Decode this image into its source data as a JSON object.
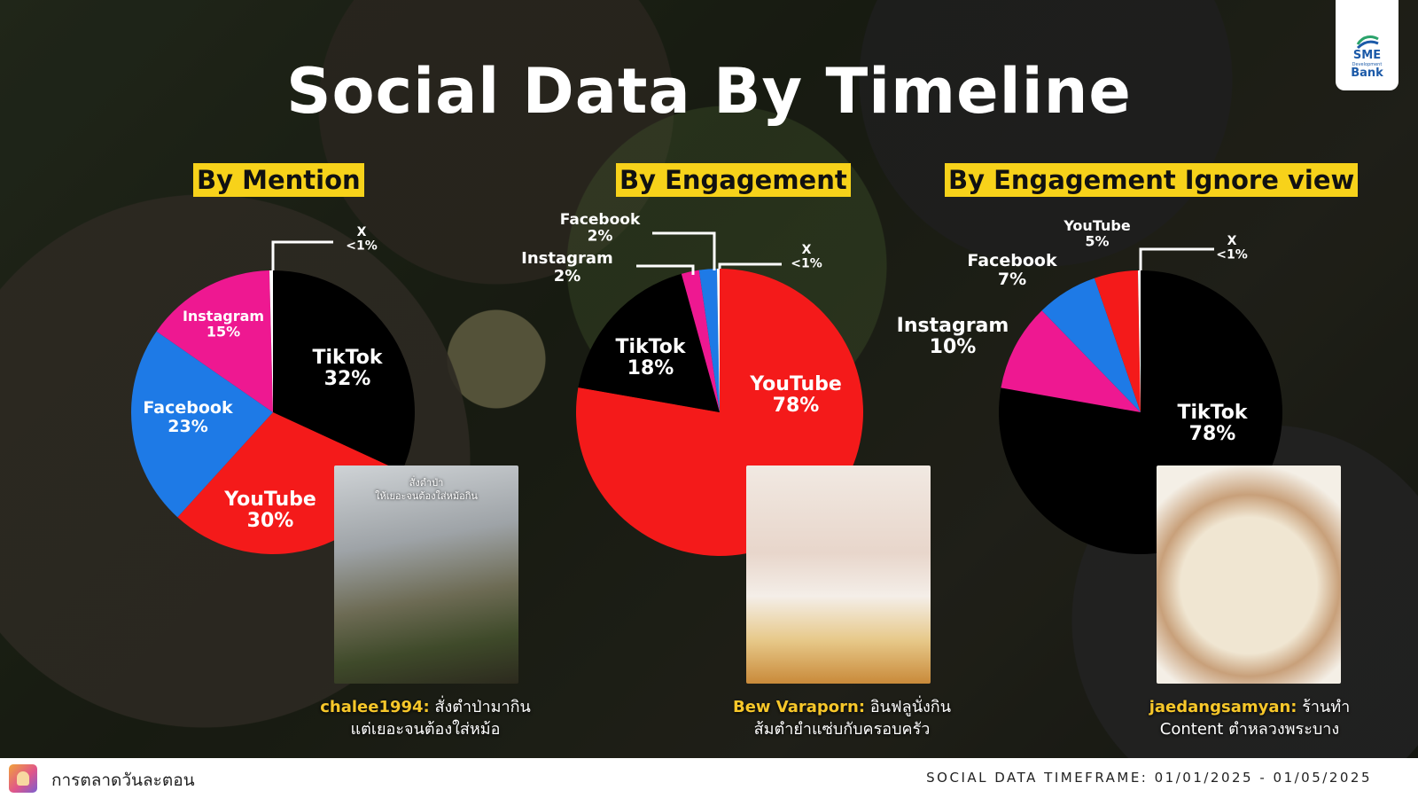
{
  "title": "Social Data By Timeline",
  "logo": {
    "line1": "SME",
    "line2": "Development",
    "line3": "Bank"
  },
  "sections": [
    {
      "title": "By Mention"
    },
    {
      "title": "By Engagement"
    },
    {
      "title": "By Engagement Ignore view"
    }
  ],
  "chart_data": [
    {
      "type": "pie",
      "title": "By Mention",
      "slices": [
        {
          "label": "TikTok",
          "value": 32,
          "display": "32%",
          "color": "#000000"
        },
        {
          "label": "YouTube",
          "value": 30,
          "display": "30%",
          "color": "#f41a1a"
        },
        {
          "label": "Facebook",
          "value": 23,
          "display": "23%",
          "color": "#1e7ae6"
        },
        {
          "label": "Instagram",
          "value": 15,
          "display": "15%",
          "color": "#ee1891"
        },
        {
          "label": "X",
          "value": 0.4,
          "display": "<1%",
          "color": "#ffffff"
        }
      ]
    },
    {
      "type": "pie",
      "title": "By Engagement",
      "slices": [
        {
          "label": "YouTube",
          "value": 78,
          "display": "78%",
          "color": "#f41a1a"
        },
        {
          "label": "TikTok",
          "value": 18,
          "display": "18%",
          "color": "#000000"
        },
        {
          "label": "Instagram",
          "value": 2,
          "display": "2%",
          "color": "#ee1891"
        },
        {
          "label": "Facebook",
          "value": 2,
          "display": "2%",
          "color": "#1e7ae6"
        },
        {
          "label": "X",
          "value": 0.3,
          "display": "<1%",
          "color": "#ffffff"
        }
      ]
    },
    {
      "type": "pie",
      "title": "By Engagement Ignore view",
      "slices": [
        {
          "label": "TikTok",
          "value": 78,
          "display": "78%",
          "color": "#000000"
        },
        {
          "label": "Instagram",
          "value": 10,
          "display": "10%",
          "color": "#ee1891"
        },
        {
          "label": "Facebook",
          "value": 7,
          "display": "7%",
          "color": "#1e7ae6"
        },
        {
          "label": "YouTube",
          "value": 5,
          "display": "5%",
          "color": "#f41a1a"
        },
        {
          "label": "X",
          "value": 0.3,
          "display": "<1%",
          "color": "#ffffff"
        }
      ]
    }
  ],
  "posts": [
    {
      "thumb_text_1": "สั่งตำป่า",
      "thumb_text_2": "ให้เยอะจนต้องใส่หม้อกิน",
      "handle": "chalee1994:",
      "text_1": "สั่งตำป่ามากิน",
      "text_2": "แต่เยอะจนต้องใส่หม้อ"
    },
    {
      "handle": "Bew Varaporn:",
      "text_1": "อินฟลูนั่งกิน",
      "text_2": "ส้มตำยำแซ่บกับครอบครัว"
    },
    {
      "handle": "jaedangsamyan:",
      "text_1": "ร้านทำ",
      "text_2": "Content ตำหลวงพระบาง"
    }
  ],
  "footer": {
    "brand": "การตลาดวันละตอน",
    "timeframe": "SOCIAL DATA TIMEFRAME: 01/01/2025 - 01/05/2025"
  }
}
